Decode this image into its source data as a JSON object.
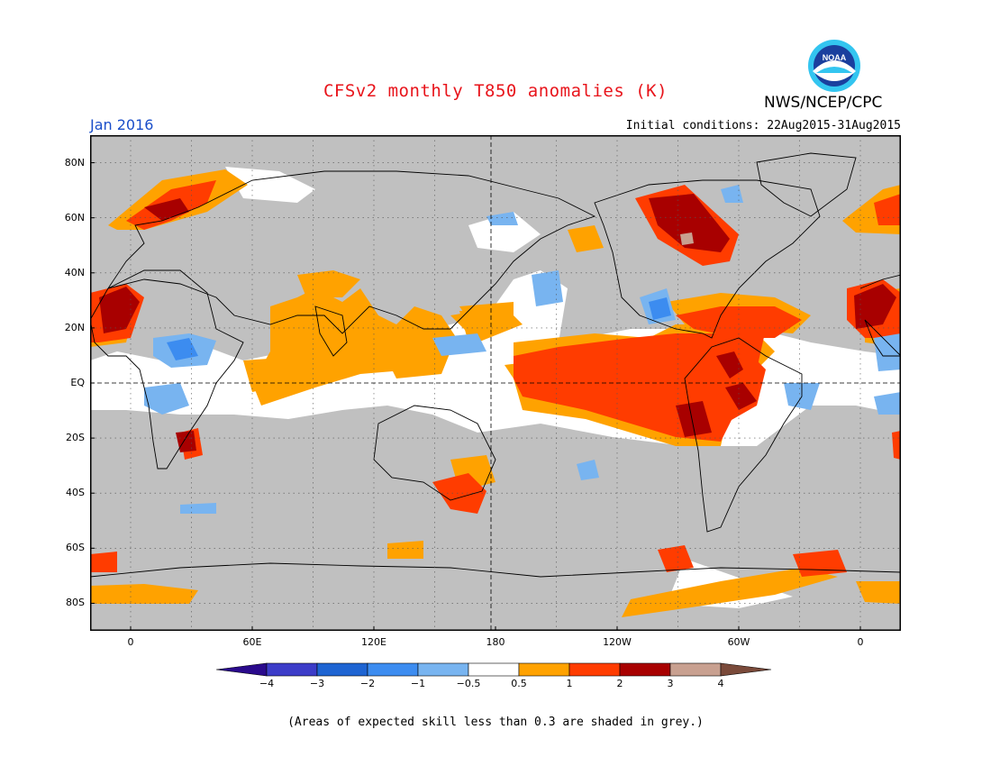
{
  "header": {
    "title": "CFSv2 monthly T850 anomalies (K)",
    "agency": "NWS/NCEP/CPC",
    "logo_text": "NOAA",
    "month": "Jan 2016",
    "initial_conditions": "Initial conditions: 22Aug2015-31Aug2015"
  },
  "map": {
    "lat_labels": [
      "80N",
      "60N",
      "40N",
      "20N",
      "EQ",
      "20S",
      "40S",
      "60S",
      "80S"
    ],
    "lon_labels": [
      "0",
      "60E",
      "120E",
      "180",
      "120W",
      "60W",
      "0"
    ],
    "lat_range": [
      -90,
      90
    ],
    "lon_range": [
      -20,
      380
    ],
    "colors": {
      "grey": "#c0c0c0",
      "neutral": "#ffffff",
      "pos_0_5_1": "#ffa200",
      "pos_1_2": "#ff3c00",
      "pos_2_3": "#a80000",
      "pos_3_4": "#c8a090",
      "neg_0_5_1": "#78b4f0",
      "neg_1_2": "#3c8cf0",
      "neg_2_3": "#1e64d2",
      "neg_3_4": "#3c3cc8"
    }
  },
  "colorbar": {
    "labels": [
      "−4",
      "−3",
      "−2",
      "−1",
      "−0.5",
      "0.5",
      "1",
      "2",
      "3",
      "4"
    ],
    "colors": [
      "#3c3cc8",
      "#1e64d2",
      "#3c8cf0",
      "#78b4f0",
      "#ffffff",
      "#ffa200",
      "#ff3c00",
      "#a80000",
      "#c8a090"
    ],
    "end_low": "#2a0a8c",
    "end_high": "#7a4a3a"
  },
  "footer": {
    "note": "(Areas of expected skill less than 0.3 are shaded in grey.)"
  }
}
